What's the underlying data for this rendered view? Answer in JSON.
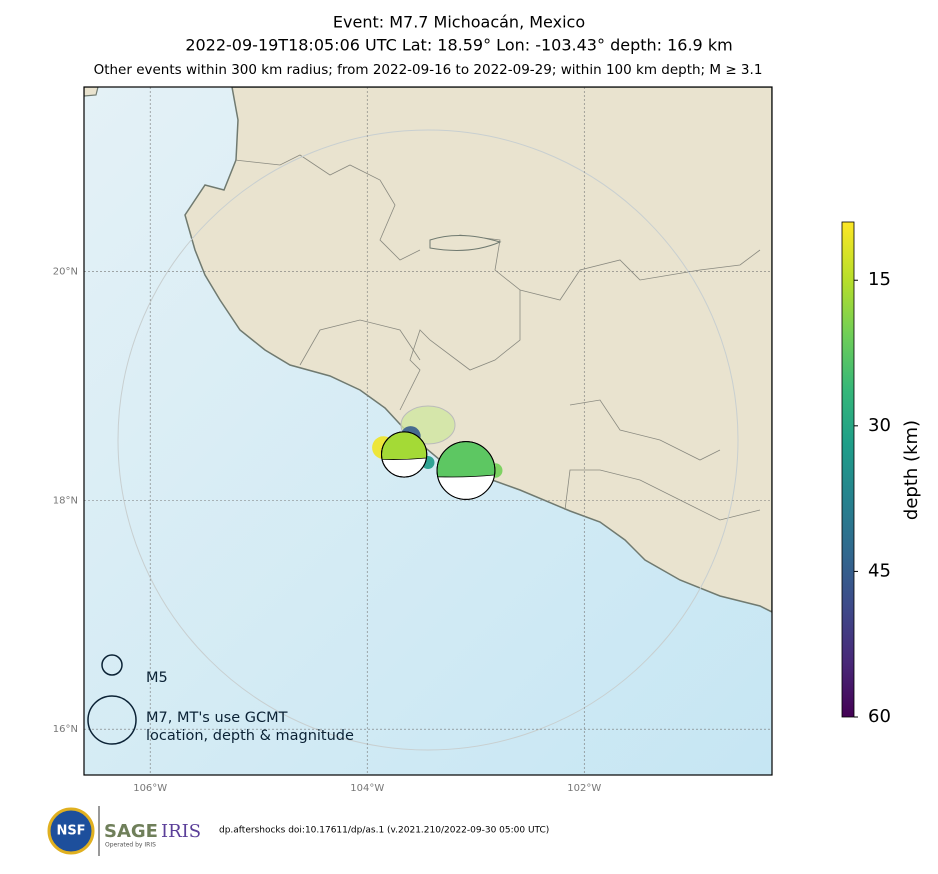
{
  "title": [
    "Event: M7.7 Michoacán, Mexico",
    "2022-09-19T18:05:06 UTC Lat: 18.59° Lon: -103.43° depth: 16.9 km",
    "Other events within 300 km radius; from 2022-09-16 to 2022-09-29; within 100 km depth; M ≥ 3.1"
  ],
  "map": {
    "xlim": [
      -106.61,
      -100.27
    ],
    "ylim": [
      15.6,
      21.61
    ],
    "xticks": [
      {
        "value": -106,
        "label": "106°W"
      },
      {
        "value": -104,
        "label": "104°W"
      },
      {
        "value": -102,
        "label": "102°W"
      }
    ],
    "yticks": [
      {
        "value": 16,
        "label": "16°N"
      },
      {
        "value": 18,
        "label": "18°N"
      },
      {
        "value": 20,
        "label": "20°N"
      }
    ],
    "events": [
      {
        "lon": -103.85,
        "lat": 18.46,
        "depth": 10,
        "magnitude": 5.2
      },
      {
        "lon": -103.6,
        "lat": 18.56,
        "depth": 45,
        "magnitude": 5.0
      },
      {
        "lon": -103.44,
        "lat": 18.33,
        "depth": 32,
        "magnitude": 4.5
      },
      {
        "lon": -102.82,
        "lat": 18.26,
        "depth": 20,
        "magnitude": 4.6
      }
    ],
    "mechanisms": [
      {
        "lon": -103.66,
        "lat": 18.4,
        "depth": 16,
        "magnitude": 6.8
      },
      {
        "lon": -103.09,
        "lat": 18.26,
        "depth": 22,
        "magnitude": 7.7
      }
    ]
  },
  "legend": [
    {
      "magnitude": 5,
      "lines": [
        "M5"
      ]
    },
    {
      "magnitude": 7,
      "lines": [
        "M7, MT's use GCMT",
        "location, depth & magnitude"
      ]
    }
  ],
  "colorbar": {
    "label": "depth (km)",
    "lim": [
      9,
      60
    ],
    "ticks": [
      15,
      30,
      45,
      60
    ]
  },
  "footer": "dp.aftershocks doi:10.17611/dp/as.1 (v.2021.210/2022-09-30 05:00 UTC)",
  "logos": {
    "nsf": "NSF",
    "sage": "SAGE",
    "iris": "IRIS",
    "operated": "Operated by IRIS"
  }
}
